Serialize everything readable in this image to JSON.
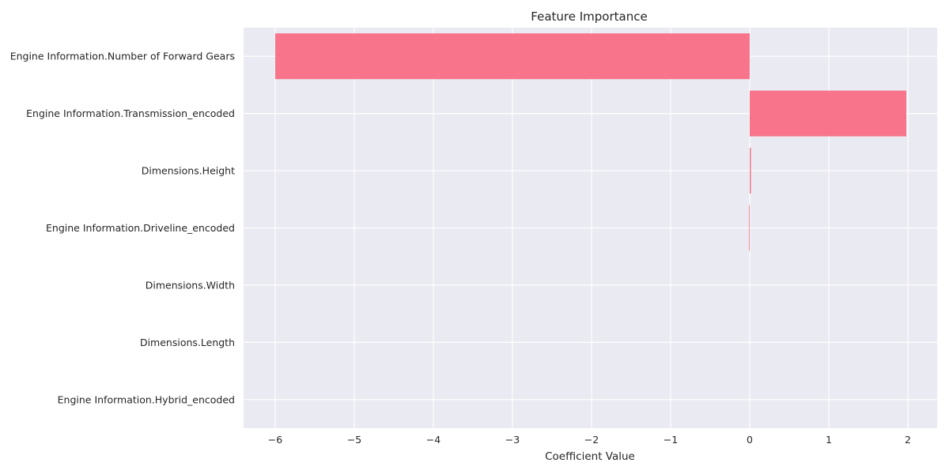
{
  "chart_data": {
    "type": "bar",
    "orientation": "horizontal",
    "title": "Feature Importance",
    "xlabel": "Coefficient Value",
    "ylabel": "",
    "categories": [
      "Engine Information.Number of Forward Gears",
      "Engine Information.Transmission_encoded",
      "Dimensions.Height",
      "Engine Information.Driveline_encoded",
      "Dimensions.Width",
      "Dimensions.Length",
      "Engine Information.Hybrid_encoded"
    ],
    "values": [
      -6.0,
      1.98,
      0.015,
      -0.008,
      0.0,
      0.0,
      0.0
    ],
    "xlim": [
      -6.4,
      2.37
    ],
    "xticks": [
      -6,
      -5,
      -4,
      -3,
      -2,
      -1,
      0,
      1,
      2
    ],
    "xtick_labels": [
      "−6",
      "−5",
      "−4",
      "−3",
      "−2",
      "−1",
      "0",
      "1",
      "2"
    ],
    "grid": true,
    "bar_color": "#f7748b",
    "plot_background": "#eaeaf2",
    "grid_color": "#ffffff"
  }
}
